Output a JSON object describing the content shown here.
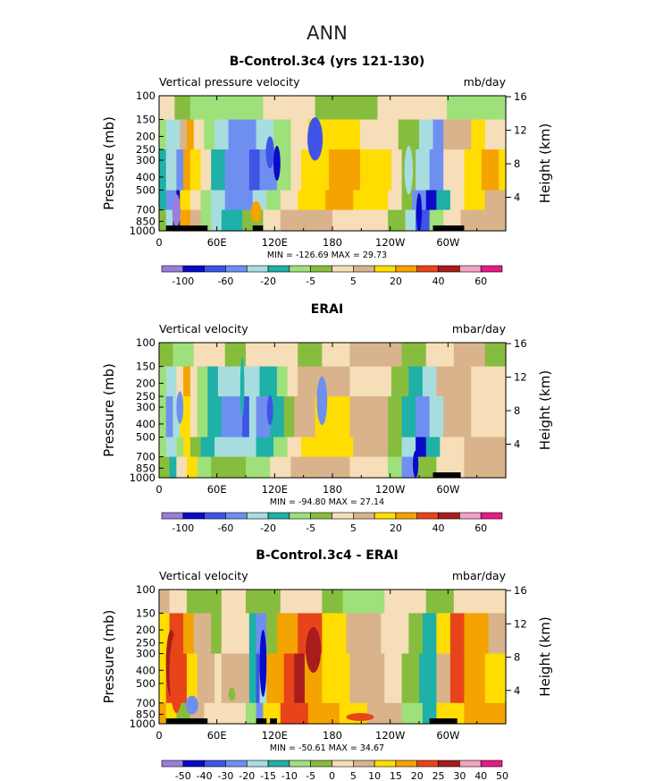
{
  "figure_title": "ANN",
  "chart_data": [
    {
      "type": "heatmap",
      "title": "B-Control.3c4 (yrs 121-130)",
      "left_label": "Vertical pressure velocity",
      "units": "mb/day",
      "ylabel": "Pressure (mb)",
      "ylabel_right": "Height (km)",
      "x_ticks": [
        "0",
        "60E",
        "120E",
        "180",
        "120W",
        "60W"
      ],
      "x_tick_lons": [
        0,
        60,
        120,
        180,
        240,
        300
      ],
      "xlim": [
        0,
        360
      ],
      "p_ticks": [
        100,
        150,
        200,
        250,
        300,
        400,
        500,
        700,
        850,
        1000
      ],
      "ylim": [
        1000,
        100
      ],
      "height_ticks": [
        "4",
        "8",
        "12",
        "16"
      ],
      "height_tick_km": [
        4,
        8,
        12,
        16
      ],
      "stats": "MIN = -126.69   MAX =  29.73",
      "colorbar": {
        "colors": [
          "#9a7fd9",
          "#0a0ac8",
          "#3f54e6",
          "#6f8ff0",
          "#a8dde0",
          "#1fb0a8",
          "#9ee07a",
          "#87bd3e",
          "#f5deb8",
          "#d9b38c",
          "#ffdd00",
          "#f5a300",
          "#e8441a",
          "#a81c1c",
          "#f2a3c4",
          "#e61a8a"
        ],
        "labels": [
          "-100",
          "-60",
          "-20",
          "-5",
          "5",
          "20",
          "40",
          "60"
        ],
        "label_after_box": [
          1,
          3,
          5,
          7,
          9,
          11,
          13,
          15
        ]
      }
    },
    {
      "type": "heatmap",
      "title": "ERAI",
      "left_label": "Vertical velocity",
      "units": "mbar/day",
      "ylabel": "Pressure (mb)",
      "ylabel_right": "Height (km)",
      "x_ticks": [
        "0",
        "60E",
        "120E",
        "180",
        "120W",
        "60W"
      ],
      "x_tick_lons": [
        0,
        60,
        120,
        180,
        240,
        300
      ],
      "xlim": [
        0,
        360
      ],
      "p_ticks": [
        100,
        150,
        200,
        250,
        300,
        400,
        500,
        700,
        850,
        1000
      ],
      "ylim": [
        1000,
        100
      ],
      "height_ticks": [
        "4",
        "8",
        "12",
        "16"
      ],
      "height_tick_km": [
        4,
        8,
        12,
        16
      ],
      "stats": "MIN = -94.80   MAX =  27.14",
      "colorbar": {
        "colors": [
          "#9a7fd9",
          "#0a0ac8",
          "#3f54e6",
          "#6f8ff0",
          "#a8dde0",
          "#1fb0a8",
          "#9ee07a",
          "#87bd3e",
          "#f5deb8",
          "#d9b38c",
          "#ffdd00",
          "#f5a300",
          "#e8441a",
          "#a81c1c",
          "#f2a3c4",
          "#e61a8a"
        ],
        "labels": [
          "-100",
          "-60",
          "-20",
          "-5",
          "5",
          "20",
          "40",
          "60"
        ],
        "label_after_box": [
          1,
          3,
          5,
          7,
          9,
          11,
          13,
          15
        ]
      }
    },
    {
      "type": "heatmap",
      "title": "B-Control.3c4 - ERAI",
      "left_label": "Vertical velocity",
      "units": "mbar/day",
      "ylabel": "Pressure (mb)",
      "ylabel_right": "Height (km)",
      "x_ticks": [
        "0",
        "60E",
        "120E",
        "180",
        "120W",
        "60W"
      ],
      "x_tick_lons": [
        0,
        60,
        120,
        180,
        240,
        300
      ],
      "xlim": [
        0,
        360
      ],
      "p_ticks": [
        100,
        150,
        200,
        250,
        300,
        400,
        500,
        700,
        850,
        1000
      ],
      "ylim": [
        1000,
        100
      ],
      "height_ticks": [
        "4",
        "8",
        "12",
        "16"
      ],
      "height_tick_km": [
        4,
        8,
        12,
        16
      ],
      "stats": "MIN = -50.61   MAX =  34.67",
      "colorbar": {
        "colors": [
          "#9a7fd9",
          "#0a0ac8",
          "#3f54e6",
          "#6f8ff0",
          "#a8dde0",
          "#1fb0a8",
          "#9ee07a",
          "#87bd3e",
          "#f5deb8",
          "#d9b38c",
          "#ffdd00",
          "#f5a300",
          "#e8441a",
          "#a81c1c",
          "#f2a3c4",
          "#e61a8a"
        ],
        "labels": [
          "-50",
          "-40",
          "-30",
          "-20",
          "-15",
          "-10",
          "-5",
          "0",
          "5",
          "10",
          "15",
          "20",
          "25",
          "30",
          "40",
          "50"
        ],
        "label_after_box": [
          1,
          2,
          3,
          4,
          5,
          6,
          7,
          8,
          9,
          10,
          11,
          12,
          13,
          14,
          15,
          16
        ]
      }
    }
  ]
}
